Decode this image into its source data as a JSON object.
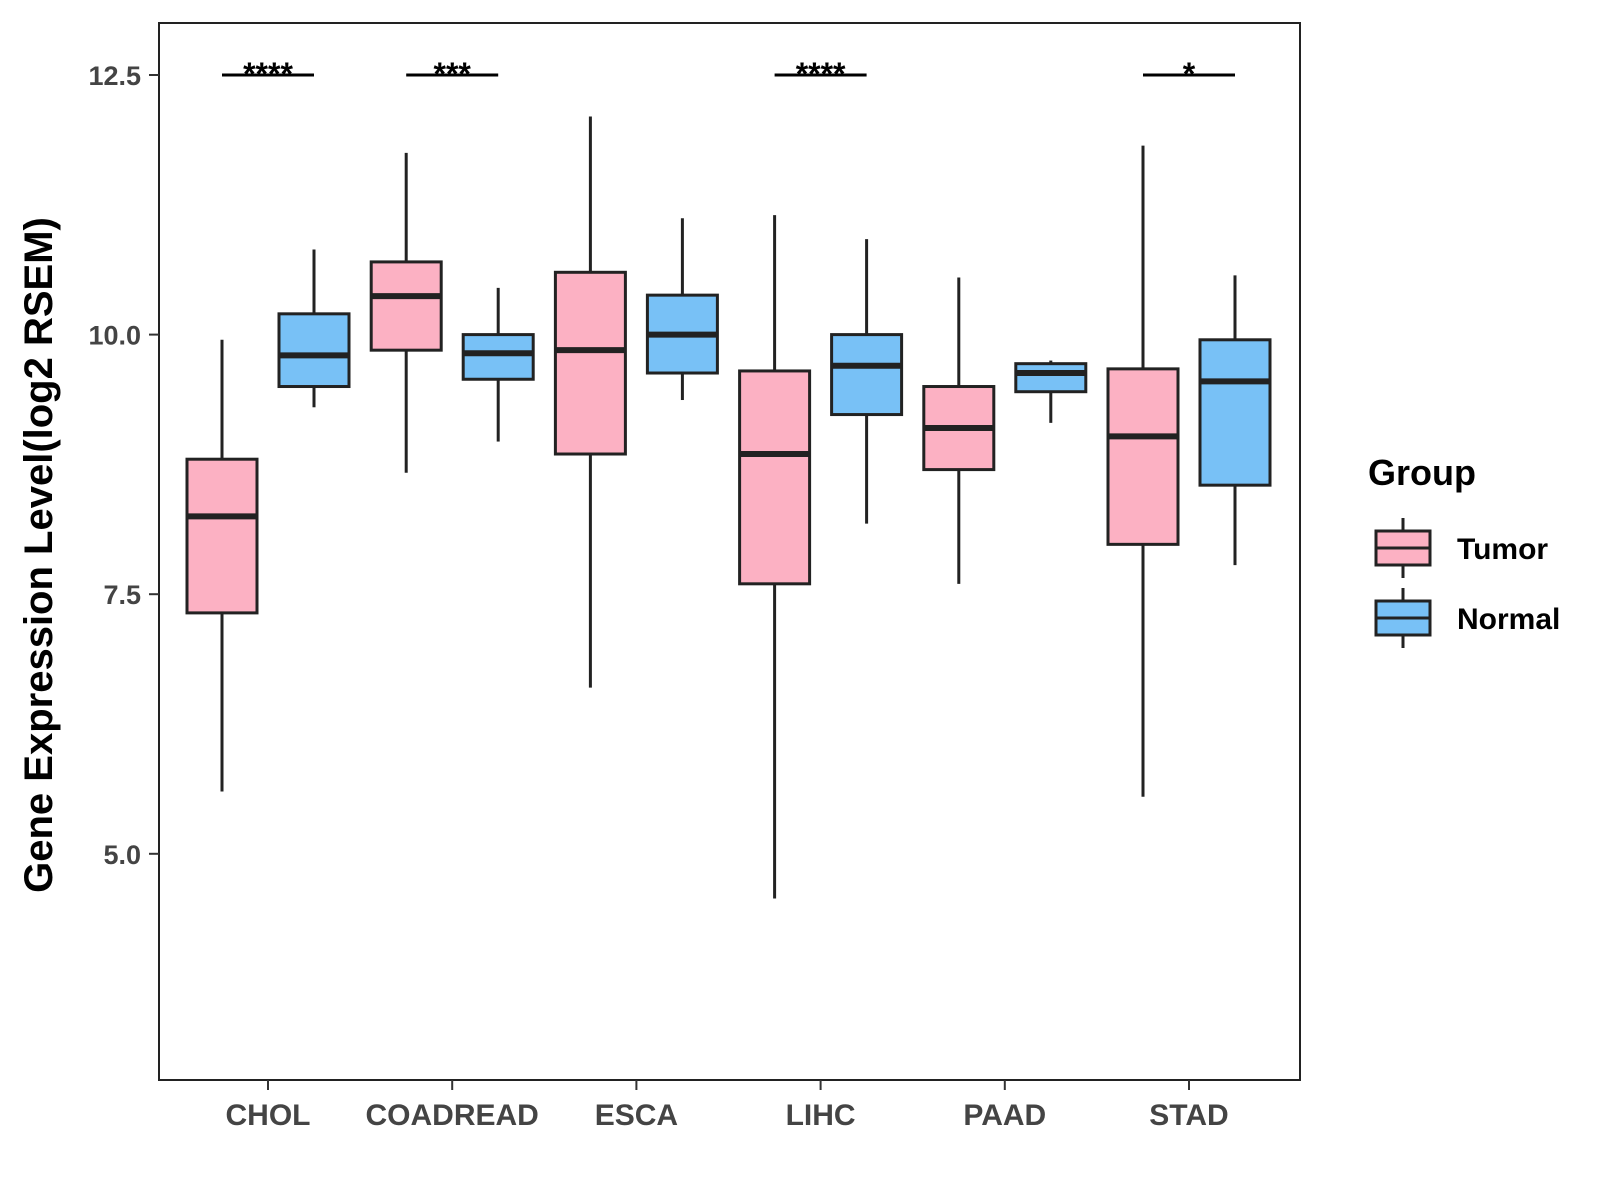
{
  "chart_data": {
    "type": "boxplot",
    "title": "",
    "xlabel": "",
    "ylabel": "Gene Expression Level(log2 RSEM)",
    "ylim": [
      2.8,
      13.0
    ],
    "yticks": [
      5.0,
      7.5,
      10.0,
      12.5
    ],
    "ytick_labels": [
      "5.0",
      "7.5",
      "10.0",
      "12.5"
    ],
    "categories": [
      "CHOL",
      "COADREAD",
      "ESCA",
      "LIHC",
      "PAAD",
      "STAD"
    ],
    "groups": [
      "Tumor",
      "Normal"
    ],
    "colors": {
      "Tumor": "#FCB1C3",
      "Normal": "#78C1F6",
      "outline": "#222222"
    },
    "boxes": {
      "Tumor": [
        {
          "whisker_low": 5.6,
          "q1": 7.32,
          "median": 8.25,
          "q3": 8.8,
          "whisker_high": 9.95
        },
        {
          "whisker_low": 8.67,
          "q1": 9.85,
          "median": 10.37,
          "q3": 10.7,
          "whisker_high": 11.75
        },
        {
          "whisker_low": 6.6,
          "q1": 8.85,
          "median": 9.85,
          "q3": 10.6,
          "whisker_high": 12.1
        },
        {
          "whisker_low": 4.57,
          "q1": 7.6,
          "median": 8.85,
          "q3": 9.65,
          "whisker_high": 11.15
        },
        {
          "whisker_low": 7.6,
          "q1": 8.7,
          "median": 9.1,
          "q3": 9.5,
          "whisker_high": 10.55
        },
        {
          "whisker_low": 5.55,
          "q1": 7.98,
          "median": 9.02,
          "q3": 9.67,
          "whisker_high": 11.82
        }
      ],
      "Normal": [
        {
          "whisker_low": 9.3,
          "q1": 9.5,
          "median": 9.8,
          "q3": 10.2,
          "whisker_high": 10.82
        },
        {
          "whisker_low": 8.97,
          "q1": 9.57,
          "median": 9.82,
          "q3": 10.0,
          "whisker_high": 10.45
        },
        {
          "whisker_low": 9.37,
          "q1": 9.63,
          "median": 10.0,
          "q3": 10.38,
          "whisker_high": 11.12
        },
        {
          "whisker_low": 8.18,
          "q1": 9.23,
          "median": 9.7,
          "q3": 10.0,
          "whisker_high": 10.92
        },
        {
          "whisker_low": 9.15,
          "q1": 9.45,
          "median": 9.63,
          "q3": 9.72,
          "whisker_high": 9.75
        },
        {
          "whisker_low": 7.78,
          "q1": 8.55,
          "median": 9.55,
          "q3": 9.95,
          "whisker_high": 10.57
        }
      ]
    },
    "significance": [
      {
        "category": "CHOL",
        "label": "****",
        "y": 12.5
      },
      {
        "category": "COADREAD",
        "label": "***",
        "y": 12.5
      },
      {
        "category": "ESCA",
        "label": "",
        "y": 12.5
      },
      {
        "category": "LIHC",
        "label": "****",
        "y": 12.5
      },
      {
        "category": "PAAD",
        "label": "",
        "y": 12.5
      },
      {
        "category": "STAD",
        "label": "*",
        "y": 12.5
      }
    ],
    "legend": {
      "title": "Group",
      "entries": [
        "Tumor",
        "Normal"
      ],
      "position": "right"
    },
    "grid": false
  }
}
